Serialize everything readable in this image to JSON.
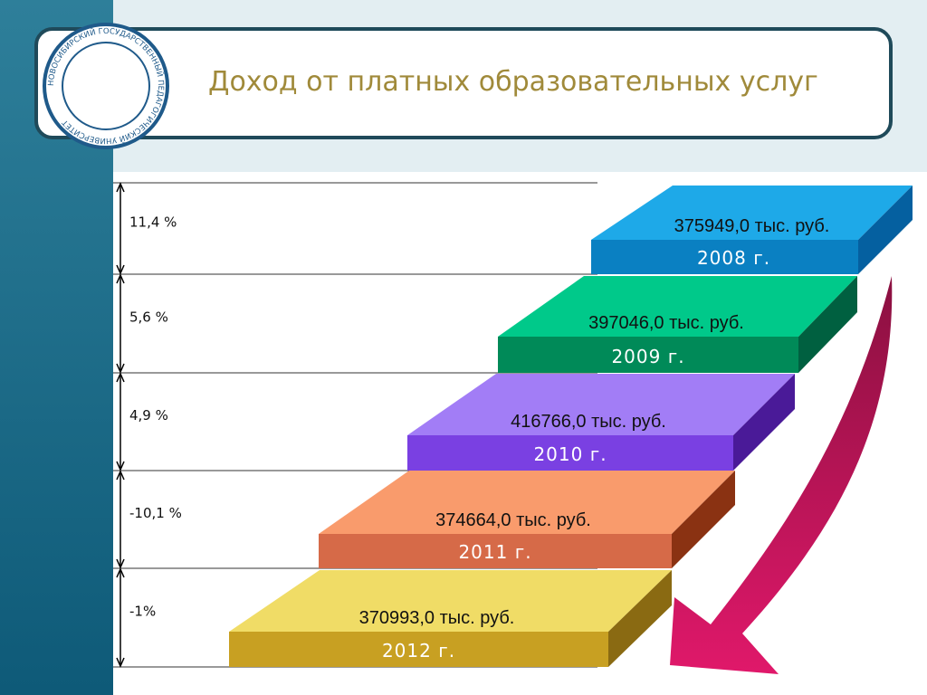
{
  "header": {
    "title": "Доход от платных образовательных услуг",
    "logo_text": "НОВОСИБИРСКИЙ ГОСУДАРСТВЕННЫЙ ПЕДАГОГИЧЕСКИЙ УНИВЕРСИТЕТ"
  },
  "steps": [
    {
      "value": "375949,0 тыс. руб.",
      "year": "2008 г."
    },
    {
      "value": "397046,0 тыс. руб.",
      "year": "2009 г."
    },
    {
      "value": "416766,0 тыс. руб.",
      "year": "2010 г."
    },
    {
      "value": "374664,0 тыс. руб.",
      "year": "2011 г."
    },
    {
      "value": "370993,0 тыс. руб.",
      "year": "2012 г."
    }
  ],
  "changes": [
    "11,4 %",
    "5,6 %",
    "4,9 %",
    "-10,1 %",
    "-1%"
  ]
}
